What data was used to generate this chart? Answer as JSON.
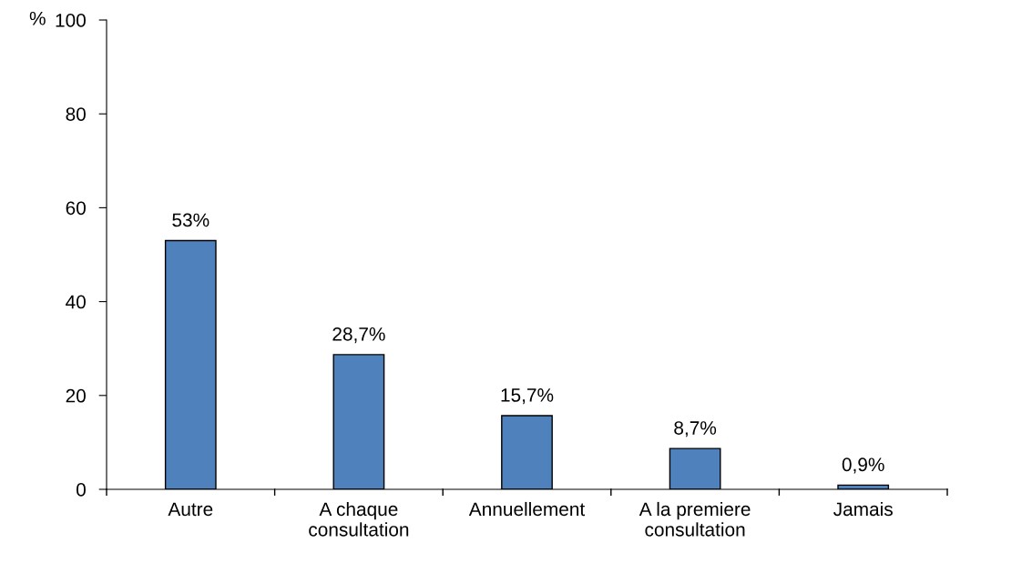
{
  "chart_data": {
    "type": "bar",
    "ylabel": "%",
    "categories": [
      "Autre",
      "A chaque\nconsultation",
      "Annuellement",
      "A la premiere\nconsultation",
      "Jamais"
    ],
    "values": [
      53,
      28.7,
      15.7,
      8.7,
      0.9
    ],
    "value_labels": [
      "53%",
      "28,7%",
      "15,7%",
      "8,7%",
      "0,9%"
    ],
    "color": "#4f81bd",
    "ylim": [
      0,
      100
    ],
    "yticks": [
      0,
      20,
      40,
      60,
      80,
      100
    ],
    "grid": false,
    "legend": false
  }
}
